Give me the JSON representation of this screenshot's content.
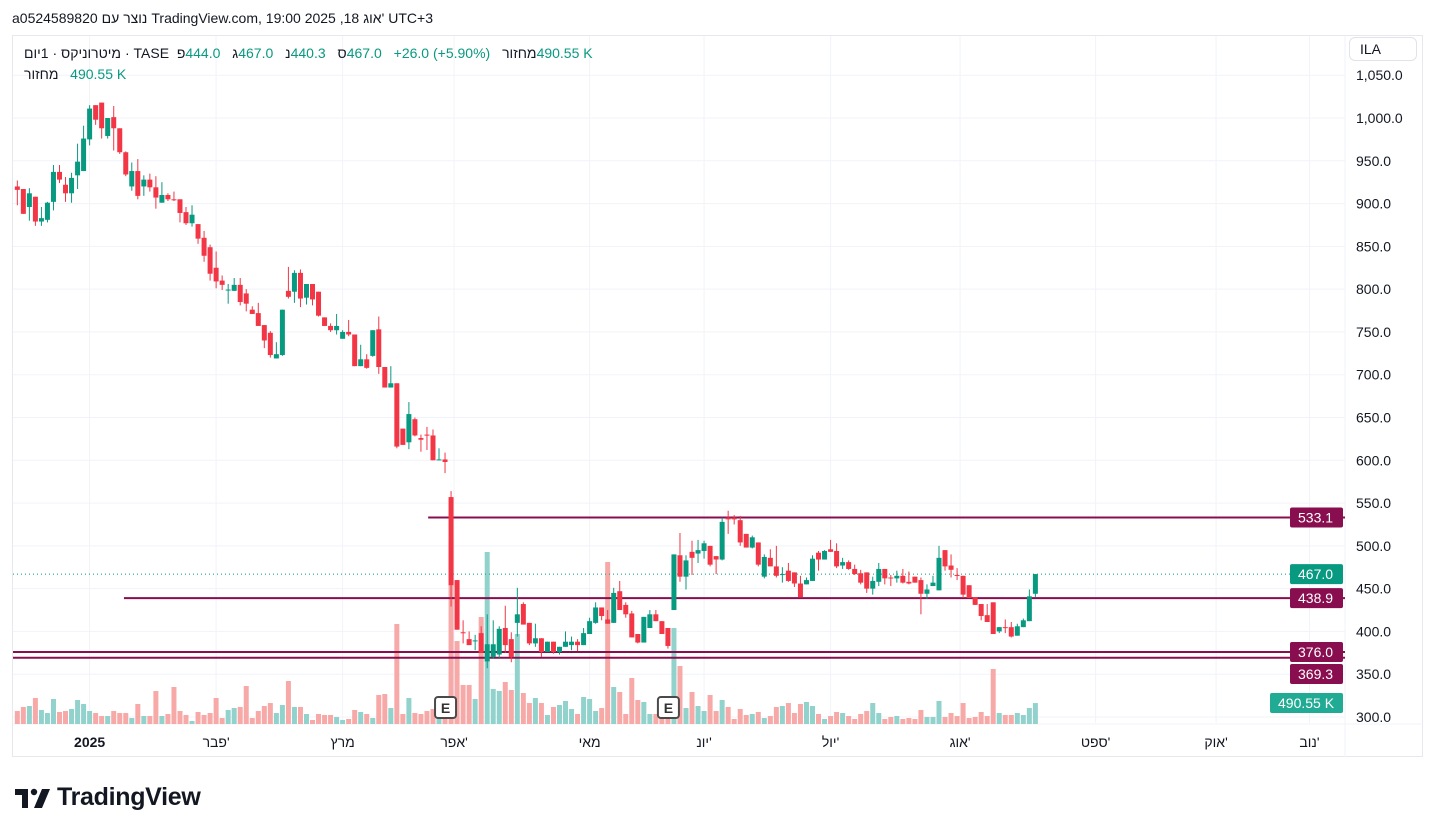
{
  "header": {
    "segments": [
      "a0524589820",
      "נוצר עם",
      "TradingView.com, 19:00 2025 ,18",
      "אוג'",
      "UTC+3"
    ]
  },
  "legend": {
    "symbol_line": "TASE · מיטרוניקס · 1יום",
    "open_label": "פ",
    "open": "444.0",
    "high_label": "ג",
    "high": "467.0",
    "low_label": "נ",
    "low": "440.3",
    "close_label": "ס",
    "close": "467.0",
    "change": "+26.0 (+5.90%)",
    "volume_label": "מחזור",
    "volume": "490.55 K",
    "volume_row_label": "מחזור",
    "volume_row_value": "490.55 K"
  },
  "currency_button": "ILA",
  "brand": "TradingView",
  "colors": {
    "up": "#089981",
    "down": "#F23645",
    "vol_up": "#92D2CC",
    "vol_down": "#F7A9A7",
    "level": "#880E4F",
    "last_price": "#089981",
    "volume_tag": "#22AB94"
  },
  "chart_data": {
    "type": "candlestick",
    "title": "TASE · מיטרוניקס · 1יום",
    "ylim": [
      300,
      1060
    ],
    "y_ticks": [
      1050,
      1000,
      950,
      900,
      850,
      800,
      750,
      700,
      650,
      600,
      550,
      500,
      450,
      400,
      350,
      300
    ],
    "x_ticks": [
      {
        "label": "2025",
        "index": 12,
        "bold": true
      },
      {
        "label": "פבר'",
        "index": 33
      },
      {
        "label": "מרץ",
        "index": 54
      },
      {
        "label": "אפר'",
        "index": 72.5
      },
      {
        "label": "מאי",
        "index": 95
      },
      {
        "label": "יונ'",
        "index": 114
      },
      {
        "label": "יול'",
        "index": 135
      },
      {
        "label": "אוג'",
        "index": 156.5
      },
      {
        "label": "ספט'",
        "index": 179
      },
      {
        "label": "אוק'",
        "index": 199
      },
      {
        "label": "נוב'",
        "index": 214.5
      }
    ],
    "horizontal_levels": [
      {
        "price": 533.1,
        "label": "533.1",
        "from_index": 68.2
      },
      {
        "price": 438.9,
        "label": "438.9",
        "from_index": 17.7
      },
      {
        "price": 376.0,
        "label": "376.0",
        "from_index": -1
      },
      {
        "price": 369.3,
        "label": "369.3",
        "from_index": -1
      }
    ],
    "last_price": {
      "price": 467.0,
      "label": "467.0"
    },
    "last_volume": {
      "value": 490.55,
      "label": "490.55 K"
    },
    "earnings_markers": [
      {
        "label": "E",
        "index": 71
      },
      {
        "label": "E",
        "index": 108
      }
    ],
    "volume_unit": "K",
    "candles_ohlcv": [
      [
        920,
        927,
        898,
        916,
        304
      ],
      [
        917,
        917,
        888,
        888,
        398
      ],
      [
        896,
        918,
        880,
        912,
        421
      ],
      [
        908,
        908,
        874,
        879,
        608
      ],
      [
        879,
        896,
        874,
        883,
        328
      ],
      [
        881,
        902,
        878,
        901,
        257
      ],
      [
        902,
        945,
        892,
        937,
        585
      ],
      [
        937,
        945,
        924,
        928,
        281
      ],
      [
        922,
        931,
        902,
        912,
        304
      ],
      [
        912,
        936,
        901,
        930,
        351
      ],
      [
        933,
        970,
        917,
        949,
        562
      ],
      [
        938,
        991,
        938,
        976,
        468
      ],
      [
        975,
        1015,
        968,
        1011,
        304
      ],
      [
        1015,
        1015,
        992,
        998,
        257
      ],
      [
        1018,
        1018,
        976,
        988,
        187
      ],
      [
        979,
        1000,
        976,
        1000,
        187
      ],
      [
        1001,
        1014,
        962,
        988,
        304
      ],
      [
        988,
        988,
        958,
        960,
        257
      ],
      [
        960,
        961,
        932,
        934,
        257
      ],
      [
        920,
        948,
        915,
        938,
        140
      ],
      [
        938,
        952,
        905,
        909,
        468
      ],
      [
        920,
        933,
        909,
        928,
        187
      ],
      [
        928,
        935,
        914,
        919,
        187
      ],
      [
        919,
        932,
        894,
        907,
        772
      ],
      [
        901,
        925,
        901,
        910,
        187
      ],
      [
        910,
        912,
        903,
        905,
        234
      ],
      [
        905,
        914,
        903,
        904,
        866
      ],
      [
        905,
        905,
        878,
        889,
        304
      ],
      [
        890,
        896,
        875,
        877,
        211
      ],
      [
        877,
        898,
        873,
        887,
        70
      ],
      [
        876,
        876,
        853,
        859,
        281
      ],
      [
        860,
        868,
        832,
        839,
        211
      ],
      [
        849,
        852,
        810,
        818,
        257
      ],
      [
        825,
        844,
        801,
        809,
        608
      ],
      [
        810,
        816,
        799,
        805,
        140
      ],
      [
        799,
        806,
        783,
        799.5,
        328
      ],
      [
        798,
        813,
        798,
        805,
        374
      ],
      [
        805,
        813,
        781,
        785,
        398
      ],
      [
        795,
        800,
        774,
        783,
        889
      ],
      [
        776,
        780,
        771,
        771,
        140
      ],
      [
        772,
        784,
        757,
        757,
        304
      ],
      [
        758,
        758,
        731,
        740,
        421
      ],
      [
        749,
        751,
        720,
        723,
        491
      ],
      [
        719,
        738,
        719,
        724,
        257
      ],
      [
        723,
        776,
        722,
        776,
        445
      ],
      [
        798,
        826,
        789,
        791,
        1006
      ],
      [
        797,
        822,
        784,
        819,
        398
      ],
      [
        819,
        823,
        779,
        789,
        398
      ],
      [
        790,
        806,
        782,
        806,
        234
      ],
      [
        806,
        806,
        781,
        788,
        94
      ],
      [
        797,
        797,
        768,
        769,
        234
      ],
      [
        767,
        767,
        757,
        757,
        211
      ],
      [
        757,
        760,
        750,
        752,
        211
      ],
      [
        752,
        771,
        747,
        757,
        164
      ],
      [
        742,
        752,
        742,
        750,
        94
      ],
      [
        750,
        764,
        745,
        747,
        117
      ],
      [
        747,
        747,
        710,
        710,
        328
      ],
      [
        710,
        735,
        710,
        718,
        281
      ],
      [
        718,
        724,
        707,
        708,
        234
      ],
      [
        722,
        752,
        721,
        752,
        140
      ],
      [
        753,
        768,
        701,
        709,
        679
      ],
      [
        709,
        709,
        685,
        685,
        702
      ],
      [
        685,
        710,
        685,
        690,
        374
      ],
      [
        690,
        690,
        614,
        616,
        2340
      ],
      [
        637,
        637,
        618,
        618,
        234
      ],
      [
        621,
        668,
        613,
        654,
        608
      ],
      [
        648,
        650,
        628,
        629,
        257
      ],
      [
        626,
        630,
        610,
        624,
        234
      ],
      [
        630,
        639,
        612,
        629.5,
        304
      ],
      [
        629,
        636,
        600,
        600,
        351
      ],
      [
        600,
        614,
        600,
        601,
        150
      ],
      [
        601,
        609,
        585,
        598,
        200
      ],
      [
        557,
        564,
        429,
        454,
        4300
      ],
      [
        460,
        460,
        402,
        402,
        1942
      ],
      [
        399,
        413,
        386,
        398,
        913
      ],
      [
        391,
        400,
        384,
        384,
        913
      ],
      [
        389,
        396,
        378,
        389.5,
        585
      ],
      [
        398,
        406,
        375,
        375,
        2504
      ],
      [
        365,
        420,
        357,
        385,
        4025
      ],
      [
        370,
        413,
        368,
        385,
        819
      ],
      [
        373,
        406,
        369,
        403,
        772
      ],
      [
        404,
        430,
        375,
        384,
        983
      ],
      [
        391,
        399,
        364,
        370,
        796
      ],
      [
        410,
        451,
        394,
        420,
        2106
      ],
      [
        432,
        434,
        408,
        408,
        725
      ],
      [
        410,
        410,
        384,
        386,
        491
      ],
      [
        386,
        409,
        382,
        392,
        608
      ],
      [
        392,
        392,
        370,
        376,
        491
      ],
      [
        376,
        388,
        376,
        388,
        211
      ],
      [
        388,
        388,
        374,
        376,
        398
      ],
      [
        376,
        382,
        373,
        382,
        445
      ],
      [
        382,
        400,
        382,
        388,
        538
      ],
      [
        384,
        394,
        378,
        388,
        351
      ],
      [
        388,
        391,
        377,
        384,
        234
      ],
      [
        384,
        404,
        384,
        398,
        632
      ],
      [
        397,
        416,
        397,
        412,
        585
      ],
      [
        410,
        434,
        409,
        428,
        304
      ],
      [
        428,
        428,
        413,
        418,
        374
      ],
      [
        414,
        425,
        409,
        409,
        3791
      ],
      [
        410,
        451,
        410,
        445,
        866
      ],
      [
        447,
        459,
        425,
        425,
        749
      ],
      [
        431,
        434,
        416,
        420,
        234
      ],
      [
        421,
        424,
        393,
        393,
        1076
      ],
      [
        397,
        397,
        386,
        387,
        562
      ],
      [
        387,
        417,
        387,
        417,
        515
      ],
      [
        404,
        425,
        404,
        420,
        234
      ],
      [
        420,
        425,
        412,
        412,
        234
      ],
      [
        412,
        412,
        397,
        397,
        234
      ],
      [
        404,
        404,
        380,
        383,
        300
      ],
      [
        425,
        490,
        425,
        490,
        2246
      ],
      [
        489,
        515,
        458,
        464,
        1357
      ],
      [
        464,
        489,
        449,
        483,
        374
      ],
      [
        493,
        506,
        466,
        486,
        749
      ],
      [
        491,
        507,
        480,
        495,
        421
      ],
      [
        494,
        506,
        485,
        503,
        304
      ],
      [
        500,
        500,
        476,
        478,
        679
      ],
      [
        488,
        488,
        467,
        484,
        304
      ],
      [
        484,
        533,
        483,
        528,
        562
      ],
      [
        533,
        541,
        514,
        531,
        398
      ],
      [
        533,
        536,
        525,
        531,
        117
      ],
      [
        530,
        535,
        500,
        504,
        351
      ],
      [
        514,
        514,
        498,
        498,
        211
      ],
      [
        498,
        512,
        497,
        510,
        234
      ],
      [
        504,
        504,
        476,
        478,
        281
      ],
      [
        464,
        490,
        462,
        487,
        140
      ],
      [
        486,
        496,
        476,
        476,
        187
      ],
      [
        476,
        500,
        463,
        465,
        398
      ],
      [
        466,
        475,
        457,
        467,
        421
      ],
      [
        471,
        480,
        458,
        459,
        491
      ],
      [
        469,
        469,
        452,
        456,
        257
      ],
      [
        456,
        465,
        440,
        440,
        468
      ],
      [
        455,
        463,
        455,
        460,
        515
      ],
      [
        459,
        489,
        459,
        485,
        421
      ],
      [
        492,
        494,
        471,
        484,
        234
      ],
      [
        484,
        495,
        484,
        494,
        117
      ],
      [
        496,
        507,
        493,
        493,
        187
      ],
      [
        494,
        503,
        474,
        476,
        281
      ],
      [
        477,
        486,
        473,
        481,
        257
      ],
      [
        481,
        483,
        472,
        473,
        187
      ],
      [
        473,
        478,
        466,
        467,
        117
      ],
      [
        468,
        472,
        455,
        457,
        234
      ],
      [
        469,
        469,
        445,
        450,
        304
      ],
      [
        450,
        464,
        443,
        459,
        491
      ],
      [
        458,
        480,
        453,
        473,
        257
      ],
      [
        473,
        473,
        455,
        462,
        117
      ],
      [
        463,
        466,
        453,
        462,
        164
      ],
      [
        462,
        471,
        457,
        465,
        187
      ],
      [
        465,
        473,
        456,
        457,
        117
      ],
      [
        458,
        470,
        455,
        456,
        140
      ],
      [
        464,
        464,
        457,
        457,
        117
      ],
      [
        460,
        463,
        420,
        444,
        328
      ],
      [
        444,
        455,
        438,
        449,
        164
      ],
      [
        453,
        465,
        453,
        457,
        164
      ],
      [
        448,
        500,
        448,
        486,
        538
      ],
      [
        495,
        495,
        471,
        476,
        164
      ],
      [
        477,
        490,
        463,
        472,
        257
      ],
      [
        466,
        474,
        460,
        465,
        187
      ],
      [
        465,
        465,
        439,
        443,
        491
      ],
      [
        454,
        454,
        439,
        439,
        140
      ],
      [
        440,
        440,
        431,
        431,
        164
      ],
      [
        432,
        432,
        413,
        418,
        281
      ],
      [
        419,
        432,
        411,
        411,
        187
      ],
      [
        434,
        434,
        397,
        397,
        1287
      ],
      [
        400,
        405,
        398,
        405,
        257
      ],
      [
        405,
        414,
        398,
        404,
        211
      ],
      [
        405,
        411,
        393,
        394,
        211
      ],
      [
        395,
        409,
        395,
        406,
        257
      ],
      [
        405,
        415,
        405,
        413,
        211
      ],
      [
        412,
        449,
        412,
        441,
        374
      ],
      [
        444,
        467,
        440.3,
        467,
        490.55
      ]
    ]
  }
}
